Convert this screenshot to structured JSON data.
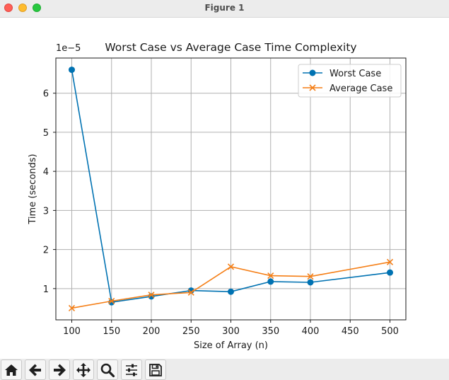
{
  "window": {
    "title": "Figure 1"
  },
  "toolbar": {
    "buttons": [
      {
        "name": "home-icon"
      },
      {
        "name": "back-arrow-icon"
      },
      {
        "name": "forward-arrow-icon"
      },
      {
        "name": "pan-move-icon"
      },
      {
        "name": "zoom-magnifier-icon"
      },
      {
        "name": "configure-subplots-icon"
      },
      {
        "name": "save-floppy-icon"
      }
    ]
  },
  "colors": {
    "worst": "#0072b2",
    "average": "#f57f17",
    "grid": "#b0b0b0"
  },
  "chart_data": {
    "type": "line",
    "title": "Worst Case vs Average Case Time Complexity",
    "xlabel": "Size of Array (n)",
    "ylabel": "Time (seconds)",
    "y_offset_label": "1e−5",
    "x": [
      100,
      150,
      200,
      250,
      300,
      350,
      400,
      500
    ],
    "xlim": [
      80,
      520
    ],
    "ylim": [
      0.2,
      6.9
    ],
    "x_ticks": [
      100,
      150,
      200,
      250,
      300,
      350,
      400,
      450,
      500
    ],
    "y_ticks": [
      1,
      2,
      3,
      4,
      5,
      6
    ],
    "x_tick_labels": [
      "100",
      "150",
      "200",
      "250",
      "300",
      "350",
      "400",
      "450",
      "500"
    ],
    "y_tick_labels": [
      "1",
      "2",
      "3",
      "4",
      "5",
      "6"
    ],
    "grid": true,
    "legend_position": "top-right",
    "series": [
      {
        "name": "Worst Case",
        "marker": "circle",
        "values": [
          6.6,
          0.65,
          0.8,
          0.95,
          0.92,
          1.18,
          1.16,
          1.41
        ]
      },
      {
        "name": "Average Case",
        "marker": "x",
        "values": [
          0.5,
          0.68,
          0.84,
          0.9,
          1.56,
          1.33,
          1.31,
          1.68
        ]
      }
    ]
  }
}
